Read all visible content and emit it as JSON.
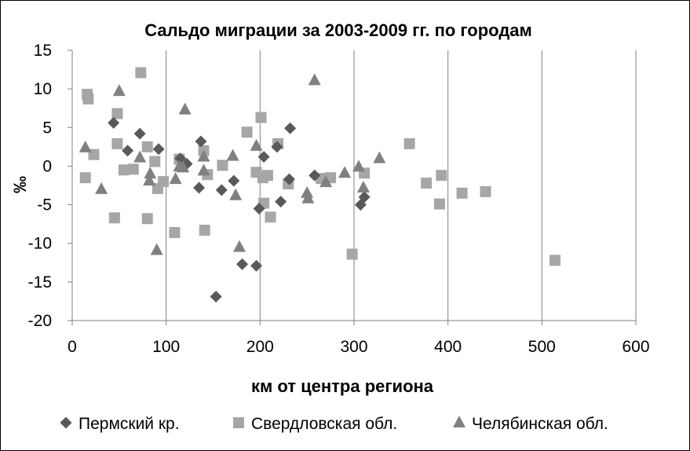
{
  "chart_data": {
    "type": "scatter",
    "title": "Сальдо миграции за 2003-2009 гг. по городам",
    "xlabel": "км от центра региона",
    "ylabel": "‰",
    "xlim": [
      0,
      600
    ],
    "ylim": [
      -20,
      15
    ],
    "x_ticks": [
      "0",
      "100",
      "200",
      "300",
      "400",
      "500",
      "600"
    ],
    "y_ticks": [
      "15",
      "10",
      "5",
      "0",
      "-5",
      "-10",
      "-15",
      "-20"
    ],
    "x_tick_values": [
      0,
      100,
      200,
      300,
      400,
      500,
      600
    ],
    "y_tick_values": [
      15,
      10,
      5,
      0,
      -5,
      -10,
      -15,
      -20
    ],
    "grid": "horizontal gridlines off; vertical gridlines on",
    "legend_position": "bottom",
    "series": [
      {
        "name": "Пермский кр.",
        "marker": "diamond",
        "color": "#595959",
        "points": [
          [
            44,
            5.6
          ],
          [
            59,
            2.0
          ],
          [
            72,
            4.2
          ],
          [
            92,
            2.2
          ],
          [
            115,
            1.0
          ],
          [
            137,
            3.2
          ],
          [
            135,
            -2.8
          ],
          [
            153,
            -16.9
          ],
          [
            159,
            -3.1
          ],
          [
            172,
            -1.9
          ],
          [
            181,
            -12.7
          ],
          [
            196,
            -12.9
          ],
          [
            199,
            -5.5
          ],
          [
            204,
            1.2
          ],
          [
            218,
            2.5
          ],
          [
            222,
            -4.6
          ],
          [
            231,
            -1.7
          ],
          [
            232,
            4.9
          ],
          [
            258,
            -1.2
          ],
          [
            307,
            -5.0
          ],
          [
            311,
            -4.0
          ],
          [
            122,
            0.3
          ]
        ]
      },
      {
        "name": "Свердловская обл.",
        "marker": "square",
        "color": "#a6a6a6",
        "points": [
          [
            16,
            9.3
          ],
          [
            17,
            8.7
          ],
          [
            14,
            -1.5
          ],
          [
            23,
            1.5
          ],
          [
            45,
            -6.7
          ],
          [
            48,
            2.9
          ],
          [
            48,
            6.8
          ],
          [
            55,
            -0.5
          ],
          [
            65,
            -0.4
          ],
          [
            73,
            12.1
          ],
          [
            80,
            2.5
          ],
          [
            80,
            -6.8
          ],
          [
            88,
            0.6
          ],
          [
            91,
            -2.9
          ],
          [
            97,
            -2.0
          ],
          [
            109,
            -8.6
          ],
          [
            114,
            0.9
          ],
          [
            140,
            2.0
          ],
          [
            141,
            -8.3
          ],
          [
            144,
            -1.1
          ],
          [
            160,
            0.1
          ],
          [
            186,
            4.4
          ],
          [
            196,
            -0.8
          ],
          [
            201,
            6.3
          ],
          [
            203,
            -1.5
          ],
          [
            204,
            -4.8
          ],
          [
            208,
            -1.2
          ],
          [
            211,
            -6.6
          ],
          [
            219,
            2.9
          ],
          [
            230,
            -2.3
          ],
          [
            265,
            -1.6
          ],
          [
            275,
            -1.5
          ],
          [
            298,
            -11.4
          ],
          [
            311,
            -0.9
          ],
          [
            359,
            2.9
          ],
          [
            377,
            -2.2
          ],
          [
            391,
            -4.9
          ],
          [
            393,
            -1.2
          ],
          [
            415,
            -3.5
          ],
          [
            440,
            -3.3
          ],
          [
            514,
            -12.2
          ]
        ]
      },
      {
        "name": "Челябинская обл.",
        "marker": "triangle",
        "color": "#808080",
        "points": [
          [
            14,
            2.4
          ],
          [
            31,
            -3.0
          ],
          [
            50,
            9.7
          ],
          [
            72,
            1.1
          ],
          [
            82,
            -1.9
          ],
          [
            83,
            -1.0
          ],
          [
            90,
            -10.9
          ],
          [
            110,
            -1.7
          ],
          [
            114,
            -0.1
          ],
          [
            118,
            -0.2
          ],
          [
            120,
            7.3
          ],
          [
            140,
            -0.6
          ],
          [
            140,
            1.2
          ],
          [
            171,
            1.3
          ],
          [
            174,
            -3.8
          ],
          [
            178,
            -10.5
          ],
          [
            196,
            2.6
          ],
          [
            250,
            -3.5
          ],
          [
            251,
            -4.2
          ],
          [
            258,
            11.1
          ],
          [
            270,
            -2.1
          ],
          [
            290,
            -0.9
          ],
          [
            305,
            -0.1
          ],
          [
            310,
            -2.8
          ],
          [
            327,
            1.0
          ]
        ]
      }
    ]
  }
}
